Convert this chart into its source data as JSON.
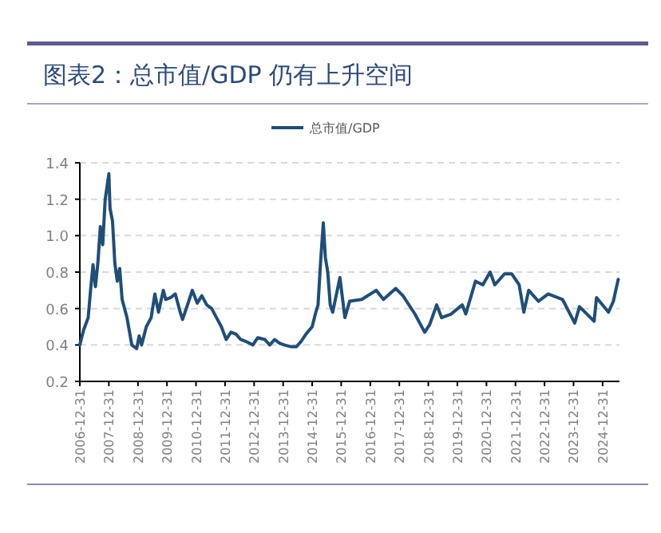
{
  "chart_data": {
    "type": "line",
    "title": "图表2：总市值/GDP 仍有上升空间",
    "x": [
      "2006-12-31",
      "2007-02-15",
      "2007-04-15",
      "2007-05-15",
      "2007-06-15",
      "2007-07-15",
      "2007-08-15",
      "2007-09-15",
      "2007-10-15",
      "2007-11-15",
      "2007-12-31",
      "2008-01-15",
      "2008-02-15",
      "2008-03-15",
      "2008-04-15",
      "2008-05-15",
      "2008-06-15",
      "2008-08-15",
      "2008-10-15",
      "2008-12-15",
      "2009-01-15",
      "2009-02-15",
      "2009-04-15",
      "2009-06-15",
      "2009-08-01",
      "2009-09-15",
      "2009-11-15",
      "2009-12-15",
      "2010-02-15",
      "2010-04-15",
      "2010-06-15",
      "2010-07-15",
      "2010-09-15",
      "2010-11-15",
      "2011-01-15",
      "2011-03-15",
      "2011-05-15",
      "2011-07-15",
      "2011-09-15",
      "2011-11-15",
      "2012-01-15",
      "2012-03-15",
      "2012-05-15",
      "2012-07-15",
      "2012-09-15",
      "2012-12-15",
      "2013-02-15",
      "2013-05-15",
      "2013-07-15",
      "2013-09-15",
      "2013-11-15",
      "2014-01-15",
      "2014-04-15",
      "2014-06-15",
      "2014-08-15",
      "2014-10-15",
      "2014-12-31",
      "2015-02-15",
      "2015-03-15",
      "2015-04-15",
      "2015-05-20",
      "2015-06-15",
      "2015-07-15",
      "2015-08-15",
      "2015-09-15",
      "2015-12-15",
      "2016-02-15",
      "2016-04-15",
      "2016-09-15",
      "2017-03-15",
      "2017-06-15",
      "2017-11-15",
      "2018-02-15",
      "2018-07-15",
      "2018-11-15",
      "2019-01-15",
      "2019-04-15",
      "2019-06-15",
      "2019-10-15",
      "2020-03-01",
      "2020-04-15",
      "2020-08-15",
      "2020-11-15",
      "2021-02-15",
      "2021-04-15",
      "2021-08-15",
      "2021-11-15",
      "2022-02-15",
      "2022-04-15",
      "2022-06-15",
      "2022-10-15",
      "2023-02-15",
      "2023-08-15",
      "2024-01-15",
      "2024-03-15",
      "2024-09-15",
      "2024-10-15",
      "2025-03-15",
      "2025-05-15",
      "2025-07-15"
    ],
    "series": [
      {
        "name": "总市值/GDP",
        "color": "#1f4e79",
        "values": [
          0.4,
          0.48,
          0.55,
          0.7,
          0.84,
          0.72,
          0.85,
          1.05,
          0.95,
          1.2,
          1.34,
          1.15,
          1.08,
          0.85,
          0.75,
          0.82,
          0.65,
          0.55,
          0.4,
          0.38,
          0.45,
          0.4,
          0.5,
          0.55,
          0.68,
          0.58,
          0.7,
          0.65,
          0.66,
          0.68,
          0.58,
          0.54,
          0.62,
          0.7,
          0.63,
          0.67,
          0.62,
          0.6,
          0.55,
          0.5,
          0.43,
          0.47,
          0.46,
          0.43,
          0.42,
          0.4,
          0.44,
          0.43,
          0.4,
          0.43,
          0.41,
          0.4,
          0.39,
          0.39,
          0.42,
          0.46,
          0.5,
          0.58,
          0.62,
          0.85,
          1.07,
          0.88,
          0.8,
          0.62,
          0.58,
          0.77,
          0.55,
          0.64,
          0.65,
          0.7,
          0.65,
          0.71,
          0.67,
          0.57,
          0.47,
          0.51,
          0.62,
          0.55,
          0.57,
          0.62,
          0.57,
          0.75,
          0.73,
          0.8,
          0.73,
          0.79,
          0.79,
          0.73,
          0.58,
          0.7,
          0.64,
          0.68,
          0.65,
          0.52,
          0.61,
          0.53,
          0.66,
          0.58,
          0.64,
          0.76
        ]
      }
    ],
    "xlim": [
      "2006-12-31",
      "2025-07-31"
    ],
    "xticks": [
      "2006-12-31",
      "2007-12-31",
      "2008-12-31",
      "2009-12-31",
      "2010-12-31",
      "2011-12-31",
      "2012-12-31",
      "2013-12-31",
      "2014-12-31",
      "2015-12-31",
      "2016-12-31",
      "2017-12-31",
      "2018-12-31",
      "2019-12-31",
      "2020-12-31",
      "2021-12-31",
      "2022-12-31",
      "2023-12-31",
      "2024-12-31"
    ],
    "ylim": [
      0.2,
      1.4
    ],
    "yticks": [
      0.2,
      0.4,
      0.6,
      0.8,
      {
        "value": 1.0,
        "label": "1.0"
      },
      1.2,
      1.4
    ],
    "grid": "y",
    "legend": "top",
    "marker": "none",
    "line_style": "solid"
  }
}
